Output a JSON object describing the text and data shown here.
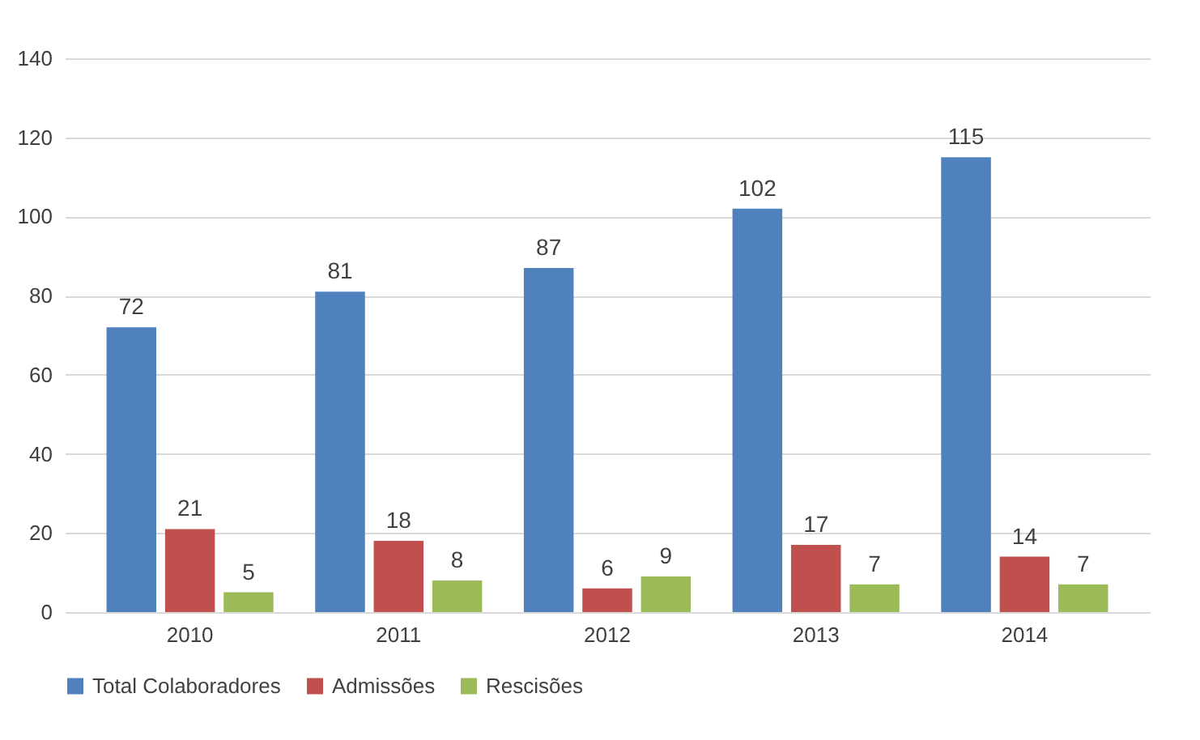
{
  "chart_data": {
    "type": "bar",
    "categories": [
      "2010",
      "2011",
      "2012",
      "2013",
      "2014"
    ],
    "series": [
      {
        "name": "Total Colaboradores",
        "color": "#4f81bd",
        "values": [
          72,
          81,
          87,
          102,
          115
        ]
      },
      {
        "name": "Admissões",
        "color": "#c0504d",
        "values": [
          21,
          18,
          6,
          17,
          14
        ]
      },
      {
        "name": "Rescisões",
        "color": "#9bbb59",
        "values": [
          5,
          8,
          9,
          7,
          7
        ]
      }
    ],
    "ylim": [
      0,
      140
    ],
    "yticks": [
      0,
      20,
      40,
      60,
      80,
      100,
      120,
      140
    ],
    "grid": "y",
    "legend": "bottom",
    "data_labels": true
  }
}
